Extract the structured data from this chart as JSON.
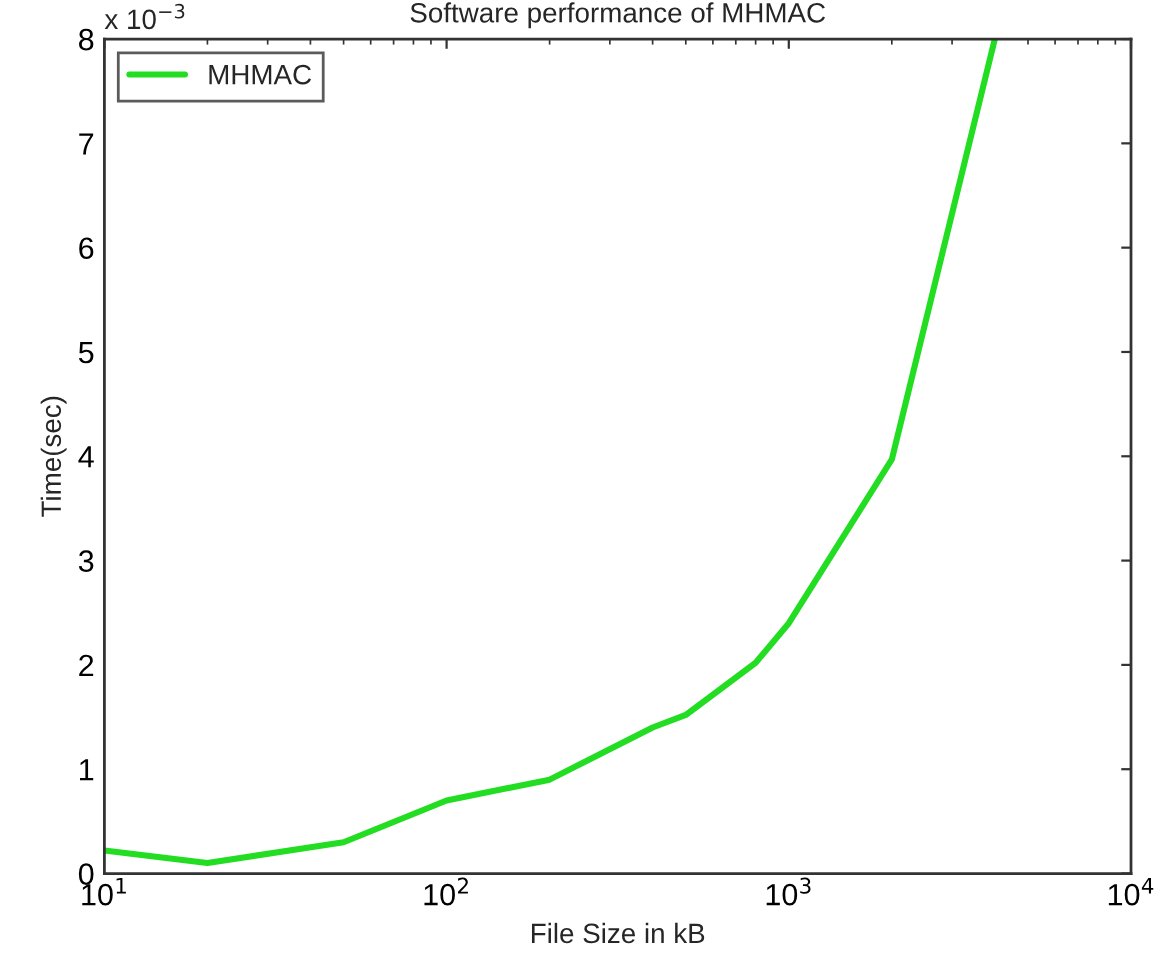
{
  "chart_data": {
    "type": "line",
    "title": "Software performance of MHMAC",
    "xlabel": "File Size in kB",
    "ylabel": "Time(sec)",
    "annotations": [
      "x 10$^{−3}$"
    ],
    "log": "x",
    "x": [
      10,
      20,
      50,
      100,
      200,
      400,
      500,
      800,
      1000,
      2000,
      4000
    ],
    "series": [
      {
        "name": "MHMAC",
        "color": "#22dd22",
        "values": [
          0.22,
          0.1,
          0.3,
          0.7,
          0.9,
          1.4,
          1.52,
          2.02,
          2.4,
          3.97,
          8.0
        ]
      }
    ],
    "xlim": [
      10,
      10000
    ],
    "xticks": [
      {
        "value": 10,
        "label": "10$^{1}$"
      },
      {
        "value": 100,
        "label": "10$^{2}$"
      },
      {
        "value": 1000,
        "label": "10$^{3}$"
      },
      {
        "value": 10000,
        "label": "10$^{4}$"
      }
    ],
    "ylim": [
      0,
      8
    ],
    "yticks": [
      0,
      1,
      2,
      3,
      4,
      5,
      6,
      7,
      8
    ],
    "grid": false,
    "legend": "top left",
    "line_style": "solid",
    "marker": "none"
  }
}
